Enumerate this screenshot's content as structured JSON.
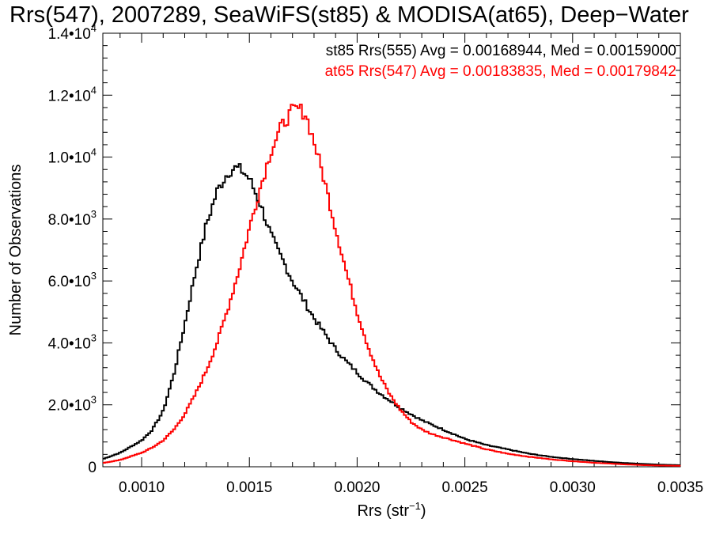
{
  "chart_data": {
    "type": "line",
    "title": "Rrs(547), 2007289, SeaWiFS(st85) & MODISA(at65), Deep−Water",
    "xlabel_main": "Rrs (str",
    "xlabel_sup": "−1",
    "xlabel_close": ")",
    "ylabel": "Number of Observations",
    "xlim": [
      0.00082,
      0.0035
    ],
    "ylim": [
      0,
      14000
    ],
    "x_ticks": [
      {
        "value": 0.001,
        "label": "0.0010"
      },
      {
        "value": 0.0015,
        "label": "0.0015"
      },
      {
        "value": 0.002,
        "label": "0.0020"
      },
      {
        "value": 0.0025,
        "label": "0.0025"
      },
      {
        "value": 0.003,
        "label": "0.0030"
      },
      {
        "value": 0.0035,
        "label": "0.0035"
      }
    ],
    "y_ticks": [
      {
        "value": 0,
        "mant": "0",
        "exp": ""
      },
      {
        "value": 2000,
        "mant": "2.0•10",
        "exp": "3"
      },
      {
        "value": 4000,
        "mant": "4.0•10",
        "exp": "3"
      },
      {
        "value": 6000,
        "mant": "6.0•10",
        "exp": "3"
      },
      {
        "value": 8000,
        "mant": "8.0•10",
        "exp": "3"
      },
      {
        "value": 10000,
        "mant": "1.0•10",
        "exp": "4"
      },
      {
        "value": 12000,
        "mant": "1.2•10",
        "exp": "4"
      },
      {
        "value": 14000,
        "mant": "1.4•10",
        "exp": "4"
      }
    ],
    "annotations": [
      {
        "text": "st85 Rrs(555) Avg = 0.00168944, Med = 0.00159000",
        "color": "#000000"
      },
      {
        "text": "at65 Rrs(547) Avg = 0.00183835, Med = 0.00179842",
        "color": "#ff0000"
      }
    ],
    "series": [
      {
        "color": "#000000",
        "x": [
          0.00082,
          0.0009,
          0.001,
          0.00105,
          0.0011,
          0.00115,
          0.0012,
          0.00125,
          0.0013,
          0.00135,
          0.0014,
          0.00143,
          0.00146,
          0.0015,
          0.00155,
          0.0016,
          0.00163,
          0.00166,
          0.0017,
          0.00175,
          0.0018,
          0.00185,
          0.0019,
          0.00195,
          0.002,
          0.00205,
          0.0021,
          0.00215,
          0.0022,
          0.00225,
          0.0023,
          0.00235,
          0.0024,
          0.00245,
          0.0025,
          0.0026,
          0.0027,
          0.0028,
          0.0029,
          0.003,
          0.0031,
          0.0032,
          0.0033,
          0.0034,
          0.0035
        ],
        "y": [
          250,
          450,
          850,
          1200,
          1800,
          3000,
          4600,
          6300,
          7800,
          8900,
          9500,
          9650,
          9600,
          9300,
          8500,
          7500,
          7000,
          6600,
          6000,
          5400,
          4800,
          4300,
          3800,
          3400,
          3050,
          2700,
          2400,
          2150,
          1900,
          1700,
          1500,
          1350,
          1200,
          1050,
          900,
          700,
          560,
          420,
          320,
          250,
          190,
          140,
          100,
          70,
          50
        ]
      },
      {
        "color": "#ff0000",
        "x": [
          0.00082,
          0.0009,
          0.001,
          0.00105,
          0.0011,
          0.00115,
          0.0012,
          0.00125,
          0.0013,
          0.00135,
          0.0014,
          0.00145,
          0.0015,
          0.00155,
          0.0016,
          0.00165,
          0.0017,
          0.00173,
          0.00176,
          0.0018,
          0.00185,
          0.0019,
          0.00195,
          0.002,
          0.00205,
          0.0021,
          0.00215,
          0.0022,
          0.00225,
          0.0023,
          0.00235,
          0.0024,
          0.00245,
          0.0025,
          0.0026,
          0.0027,
          0.0028,
          0.0029,
          0.003,
          0.0031,
          0.0032,
          0.0033,
          0.0034,
          0.0035
        ],
        "y": [
          120,
          220,
          450,
          620,
          850,
          1200,
          1700,
          2350,
          3100,
          4000,
          5100,
          6300,
          7700,
          9000,
          10200,
          11000,
          11500,
          11550,
          11400,
          10500,
          9200,
          7700,
          6300,
          5000,
          3900,
          3000,
          2350,
          1850,
          1450,
          1200,
          1050,
          950,
          850,
          750,
          560,
          420,
          320,
          240,
          180,
          130,
          90,
          60,
          40,
          30
        ]
      }
    ]
  }
}
